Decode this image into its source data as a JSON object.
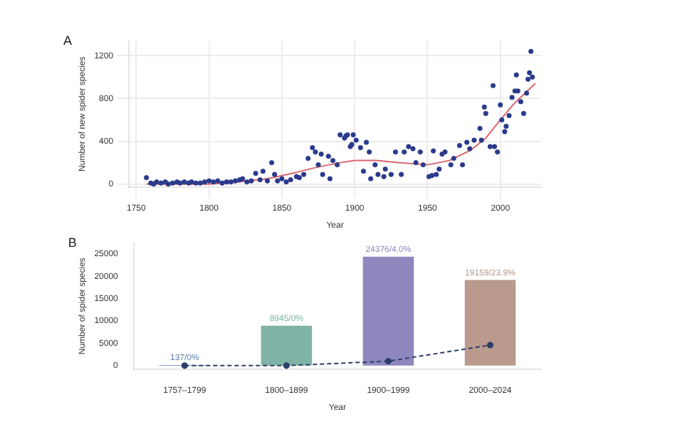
{
  "chart_data": [
    {
      "type": "scatter",
      "title": "A",
      "xlabel": "Year",
      "ylabel": "Number of new spider species",
      "xlim": [
        1745,
        2028
      ],
      "xticks": [
        1750,
        1800,
        1850,
        1900,
        1950,
        2000
      ],
      "ylim": [
        -30,
        1340
      ],
      "yticks": [
        0,
        400,
        800,
        1200
      ],
      "grid": true,
      "series": [
        {
          "color": "#2b3a8c",
          "marker": "circle",
          "x": [
            1757,
            1760,
            1762,
            1764,
            1767,
            1770,
            1772,
            1775,
            1778,
            1780,
            1783,
            1786,
            1788,
            1791,
            1794,
            1797,
            1800,
            1803,
            1806,
            1809,
            1812,
            1815,
            1818,
            1821,
            1823,
            1826,
            1829,
            1832,
            1835,
            1837,
            1840,
            1843,
            1845,
            1847,
            1850,
            1853,
            1856,
            1860,
            1862,
            1865,
            1868,
            1871,
            1873,
            1875,
            1877,
            1878,
            1882,
            1883,
            1885,
            1888,
            1890,
            1893,
            1894,
            1895,
            1897,
            1898,
            1899,
            1901,
            1904,
            1906,
            1908,
            1910,
            1911,
            1914,
            1916,
            1920,
            1921,
            1925,
            1928,
            1932,
            1934,
            1937,
            1940,
            1942,
            1945,
            1947,
            1951,
            1953,
            1954,
            1956,
            1958,
            1960,
            1962,
            1966,
            1968,
            1972,
            1974,
            1977,
            1979,
            1982,
            1986,
            1987,
            1989,
            1990,
            1993,
            1995,
            1996,
            1998,
            2000,
            2001,
            2003,
            2004,
            2006,
            2008,
            2010,
            2011,
            2012,
            2014,
            2016,
            2018,
            2019,
            2020,
            2021,
            2022
          ],
          "values": [
            60,
            10,
            0,
            20,
            10,
            20,
            0,
            10,
            20,
            10,
            20,
            10,
            20,
            10,
            10,
            20,
            30,
            20,
            30,
            10,
            20,
            20,
            30,
            40,
            50,
            20,
            30,
            100,
            40,
            120,
            30,
            200,
            90,
            30,
            50,
            20,
            40,
            70,
            60,
            90,
            240,
            340,
            300,
            180,
            280,
            90,
            260,
            50,
            220,
            180,
            460,
            430,
            450,
            460,
            350,
            370,
            460,
            410,
            340,
            120,
            390,
            300,
            50,
            180,
            90,
            70,
            140,
            90,
            300,
            90,
            300,
            350,
            330,
            200,
            300,
            180,
            70,
            80,
            310,
            90,
            140,
            280,
            300,
            180,
            240,
            360,
            180,
            390,
            330,
            410,
            520,
            410,
            720,
            660,
            350,
            920,
            350,
            300,
            740,
            600,
            490,
            540,
            640,
            810,
            870,
            1020,
            870,
            770,
            660,
            850,
            980,
            1040,
            1240,
            1000
          ]
        },
        {
          "type": "line",
          "color": "#d9646e",
          "marker": "none",
          "x": [
            1757,
            1780,
            1800,
            1820,
            1840,
            1860,
            1875,
            1890,
            1900,
            1915,
            1930,
            1950,
            1965,
            1980,
            1990,
            2000,
            2010,
            2024
          ],
          "values": [
            0,
            0,
            0,
            20,
            50,
            110,
            160,
            200,
            220,
            220,
            200,
            180,
            220,
            320,
            430,
            600,
            760,
            940
          ]
        }
      ]
    },
    {
      "type": "bar",
      "title": "B",
      "xlabel": "Year",
      "ylabel": "Number of spider species",
      "categories": [
        "1757–1799",
        "1800–1899",
        "1900–1999",
        "2000–2024"
      ],
      "ylim": [
        -850,
        27500
      ],
      "yticks": [
        0,
        5000,
        10000,
        15000,
        20000,
        25000
      ],
      "series": [
        {
          "colors": [
            "#5b7fb0",
            "#7fb3a6",
            "#8e87bd",
            "#b99a8c"
          ],
          "values": [
            137,
            8945,
            24376,
            19159
          ],
          "value_labels": [
            "137/0%",
            "8945/0%",
            "24376/4.0%",
            "19159/23.9%"
          ]
        },
        {
          "type": "line",
          "color": "#2c3e6b",
          "marker": "circle",
          "line_style": "dashed",
          "values": [
            0,
            0,
            1000,
            4600
          ]
        }
      ]
    }
  ]
}
